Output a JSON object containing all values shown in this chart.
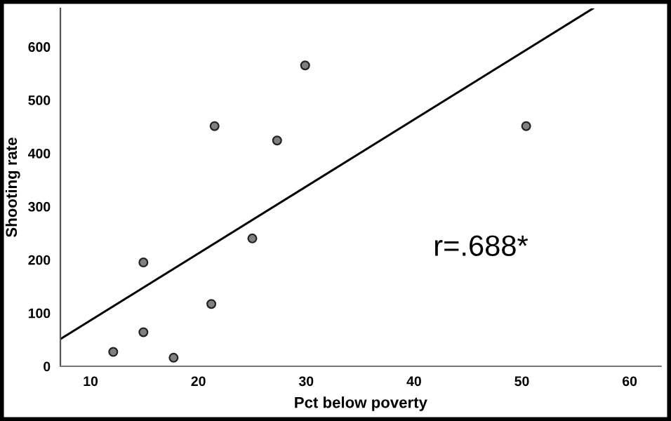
{
  "chart_data": {
    "type": "scatter",
    "xlabel": "Pct below poverty",
    "ylabel": "Shooting rate",
    "annotations": [
      "r=.688*"
    ],
    "series": [
      {
        "color": "#808080",
        "marker": "circle",
        "x": [
          12.1,
          14.9,
          14.9,
          17.7,
          21.2,
          21.5,
          25.0,
          27.3,
          29.9,
          50.4
        ],
        "values": [
          27,
          195,
          64,
          16,
          117,
          451,
          240,
          424,
          565,
          451
        ]
      },
      {
        "type": "line",
        "marker": "none",
        "color": "#000000",
        "x": [
          7.2,
          56.6
        ],
        "values": [
          51,
          672
        ]
      }
    ],
    "xlim": [
      7.2,
      62.9
    ],
    "ylim": [
      0,
      672
    ],
    "xticks": [
      10,
      20,
      30,
      40,
      50,
      60
    ],
    "yticks": [
      0,
      100,
      200,
      300,
      400,
      500,
      600
    ],
    "grid": false,
    "legend": false
  }
}
